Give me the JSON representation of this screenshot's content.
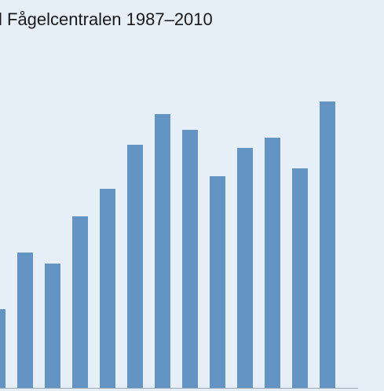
{
  "chart_data": {
    "type": "bar",
    "title": "l Fågelcentralen 1987–2010",
    "xlabel": "",
    "ylabel": "",
    "categories": [
      "",
      "",
      "",
      "",
      "",
      "",
      "",
      "",
      "",
      "",
      "",
      "",
      ""
    ],
    "values": [
      100,
      172,
      158,
      218,
      253,
      309,
      348,
      328,
      269,
      305,
      318,
      279,
      364
    ],
    "ylim": [
      0,
      400
    ],
    "grid": false,
    "legend": "none",
    "colors": {
      "bar": "#6494c4",
      "axis": "#9aa6b4",
      "background": "#e6eef8"
    }
  }
}
